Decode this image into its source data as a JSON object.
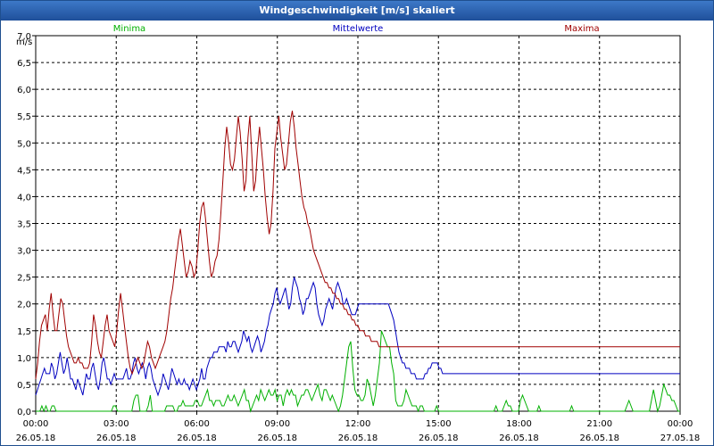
{
  "window": {
    "title": "Windgeschwindigkeit [m/s] skaliert"
  },
  "chart_data": {
    "type": "line",
    "title": "Windgeschwindigkeit [m/s] skaliert",
    "ylabel": "m/s",
    "ylim": [
      0,
      7.0
    ],
    "y_ticks": [
      "0,0",
      "0,5",
      "1,0",
      "1,5",
      "2,0",
      "2,5",
      "3,0",
      "3,5",
      "4,0",
      "4,5",
      "5,0",
      "5,5",
      "6,0",
      "6,5",
      "7,0"
    ],
    "x_ticks": [
      {
        "time": "00:00",
        "date": "26.05.18"
      },
      {
        "time": "03:00",
        "date": "26.05.18"
      },
      {
        "time": "06:00",
        "date": "26.05.18"
      },
      {
        "time": "09:00",
        "date": "26.05.18"
      },
      {
        "time": "12:00",
        "date": "26.05.18"
      },
      {
        "time": "15:00",
        "date": "26.05.18"
      },
      {
        "time": "18:00",
        "date": "26.05.18"
      },
      {
        "time": "21:00",
        "date": "26.05.18"
      },
      {
        "time": "00:00",
        "date": "27.05.18"
      }
    ],
    "x_range_hours": [
      0,
      24
    ],
    "grid": true,
    "legend_position": "top",
    "series": [
      {
        "name": "Minima",
        "color": "#00b000",
        "values": [
          0.0,
          0.0,
          0.0,
          0.1,
          0.0,
          0.1,
          0.0,
          0.0,
          0.1,
          0.1,
          0.0,
          0.0,
          0.0,
          0.0,
          0.0,
          0.0,
          0.0,
          0.0,
          0.0,
          0.0,
          0.0,
          0.0,
          0.0,
          0.0,
          0.0,
          0.0,
          0.0,
          0.0,
          0.0,
          0.0,
          0.0,
          0.0,
          0.0,
          0.0,
          0.0,
          0.0,
          0.0,
          0.0,
          0.1,
          0.1,
          0.0,
          0.0,
          0.0,
          0.0,
          0.0,
          0.0,
          0.0,
          0.0,
          0.2,
          0.3,
          0.3,
          0.0,
          0.0,
          0.0,
          0.0,
          0.1,
          0.3,
          0.0,
          0.0,
          0.0,
          0.0,
          0.0,
          0.0,
          0.0,
          0.1,
          0.1,
          0.1,
          0.1,
          0.0,
          0.0,
          0.1,
          0.1,
          0.2,
          0.1,
          0.1,
          0.1,
          0.1,
          0.1,
          0.2,
          0.2,
          0.1,
          0.1,
          0.2,
          0.3,
          0.4,
          0.2,
          0.2,
          0.1,
          0.2,
          0.2,
          0.2,
          0.1,
          0.1,
          0.2,
          0.3,
          0.2,
          0.2,
          0.3,
          0.2,
          0.1,
          0.2,
          0.3,
          0.4,
          0.2,
          0.2,
          0.0,
          0.1,
          0.2,
          0.3,
          0.2,
          0.4,
          0.3,
          0.2,
          0.3,
          0.4,
          0.3,
          0.3,
          0.4,
          0.2,
          0.3,
          0.3,
          0.1,
          0.3,
          0.4,
          0.3,
          0.4,
          0.3,
          0.3,
          0.1,
          0.2,
          0.3,
          0.3,
          0.4,
          0.4,
          0.3,
          0.2,
          0.3,
          0.4,
          0.5,
          0.3,
          0.2,
          0.4,
          0.4,
          0.3,
          0.2,
          0.3,
          0.2,
          0.1,
          0.0,
          0.1,
          0.3,
          0.6,
          0.9,
          1.2,
          1.3,
          0.8,
          0.4,
          0.3,
          0.3,
          0.2,
          0.2,
          0.3,
          0.6,
          0.5,
          0.3,
          0.1,
          0.3,
          0.6,
          0.9,
          1.5,
          1.4,
          1.3,
          1.2,
          1.2,
          0.9,
          0.7,
          0.2,
          0.1,
          0.1,
          0.1,
          0.2,
          0.4,
          0.3,
          0.2,
          0.1,
          0.1,
          0.1,
          0.0,
          0.1,
          0.1,
          0.0,
          0.0,
          0.0,
          0.0,
          0.0,
          0.0,
          0.1,
          0.0,
          0.0,
          0.0,
          0.0,
          0.0,
          0.0,
          0.0,
          0.0,
          0.0,
          0.0,
          0.0,
          0.0,
          0.0,
          0.0,
          0.0,
          0.0,
          0.0,
          0.0,
          0.0,
          0.0,
          0.0,
          0.0,
          0.0,
          0.0,
          0.0,
          0.0,
          0.0,
          0.0,
          0.1,
          0.0,
          0.0,
          0.0,
          0.1,
          0.2,
          0.1,
          0.1,
          0.0,
          0.0,
          0.0,
          0.0,
          0.2,
          0.3,
          0.2,
          0.1,
          0.0,
          0.0,
          0.0,
          0.0,
          0.0,
          0.1,
          0.0,
          0.0,
          0.0,
          0.0,
          0.0,
          0.0,
          0.0,
          0.0,
          0.0,
          0.0,
          0.0,
          0.0,
          0.0,
          0.0,
          0.0,
          0.1,
          0.0,
          0.0,
          0.0,
          0.0,
          0.0,
          0.0,
          0.0,
          0.0,
          0.0,
          0.0,
          0.0,
          0.0,
          0.0,
          0.0,
          0.0,
          0.0,
          0.0,
          0.0,
          0.0,
          0.0,
          0.0,
          0.0,
          0.0,
          0.0,
          0.0,
          0.0,
          0.1,
          0.2,
          0.1,
          0.0,
          0.0,
          0.0,
          0.0,
          0.0,
          0.0,
          0.0,
          0.0,
          0.0,
          0.2,
          0.4,
          0.2,
          0.0,
          0.1,
          0.3,
          0.5,
          0.4,
          0.3,
          0.3,
          0.2,
          0.2,
          0.1,
          0.0,
          0.0
        ]
      },
      {
        "name": "Mittelwerte",
        "color": "#0000c0",
        "values": [
          0.3,
          0.4,
          0.5,
          0.6,
          0.7,
          0.8,
          0.7,
          0.7,
          0.7,
          0.9,
          0.8,
          0.6,
          0.7,
          0.9,
          1.1,
          0.9,
          0.7,
          0.8,
          1.0,
          0.8,
          0.6,
          0.6,
          0.5,
          0.4,
          0.6,
          0.5,
          0.4,
          0.3,
          0.5,
          0.7,
          0.6,
          0.6,
          0.8,
          0.9,
          0.7,
          0.5,
          0.4,
          0.6,
          0.9,
          1.0,
          0.8,
          0.6,
          0.6,
          0.5,
          0.6,
          0.7,
          0.6,
          0.6,
          0.6,
          0.6,
          0.6,
          0.7,
          0.8,
          0.6,
          0.6,
          0.7,
          0.9,
          1.0,
          0.8,
          0.7,
          0.8,
          0.9,
          0.8,
          0.6,
          0.8,
          0.9,
          0.8,
          0.6,
          0.5,
          0.4,
          0.3,
          0.4,
          0.5,
          0.7,
          0.6,
          0.5,
          0.4,
          0.6,
          0.8,
          0.7,
          0.6,
          0.5,
          0.6,
          0.5,
          0.5,
          0.6,
          0.5,
          0.5,
          0.4,
          0.5,
          0.6,
          0.5,
          0.4,
          0.5,
          0.6,
          0.8,
          0.6,
          0.6,
          0.8,
          0.9,
          1.0,
          1.0,
          1.1,
          1.1,
          1.1,
          1.2,
          1.2,
          1.2,
          1.2,
          1.1,
          1.3,
          1.2,
          1.2,
          1.3,
          1.3,
          1.2,
          1.1,
          1.2,
          1.3,
          1.5,
          1.4,
          1.3,
          1.4,
          1.2,
          1.1,
          1.2,
          1.3,
          1.4,
          1.3,
          1.1,
          1.2,
          1.3,
          1.5,
          1.6,
          1.8,
          1.9,
          2.0,
          2.2,
          2.3,
          2.1,
          2.0,
          2.1,
          2.2,
          2.3,
          2.1,
          1.9,
          2.0,
          2.3,
          2.5,
          2.4,
          2.3,
          2.1,
          2.0,
          1.8,
          1.9,
          2.1,
          2.1,
          2.2,
          2.3,
          2.4,
          2.3,
          2.0,
          1.8,
          1.7,
          1.6,
          1.7,
          1.9,
          2.0,
          2.1,
          2.0,
          1.9,
          2.1,
          2.3,
          2.4,
          2.3,
          2.2,
          2.0,
          2.0,
          2.1,
          2.0,
          1.9,
          1.8,
          1.8,
          1.8,
          1.9,
          2.0,
          2.0,
          2.0,
          2.0,
          2.0,
          2.0,
          2.0,
          2.0,
          2.0,
          2.0,
          2.0,
          2.0,
          2.0,
          2.0,
          2.0,
          2.0,
          2.0,
          2.0,
          1.9,
          1.8,
          1.7,
          1.5,
          1.3,
          1.1,
          1.0,
          0.9,
          0.9,
          0.8,
          0.8,
          0.8,
          0.7,
          0.7,
          0.7,
          0.6,
          0.6,
          0.6,
          0.6,
          0.6,
          0.7,
          0.7,
          0.8,
          0.8,
          0.9,
          0.9,
          0.9,
          0.9,
          0.8,
          0.8,
          0.7,
          0.7,
          0.7,
          0.7,
          0.7,
          0.7,
          0.7,
          0.7,
          0.7,
          0.7,
          0.7,
          0.7,
          0.7,
          0.7,
          0.7,
          0.7,
          0.7,
          0.7,
          0.7,
          0.7,
          0.7,
          0.7,
          0.7,
          0.7,
          0.7,
          0.7,
          0.7,
          0.7,
          0.7,
          0.7,
          0.7,
          0.7,
          0.7,
          0.7,
          0.7,
          0.7,
          0.7,
          0.7,
          0.7,
          0.7,
          0.7,
          0.7,
          0.7,
          0.7,
          0.7,
          0.7,
          0.7,
          0.7,
          0.7,
          0.7,
          0.7,
          0.7,
          0.7,
          0.7,
          0.7,
          0.7,
          0.7,
          0.7,
          0.7,
          0.7,
          0.7,
          0.7,
          0.7,
          0.7,
          0.7,
          0.7,
          0.7,
          0.7,
          0.7,
          0.7,
          0.7,
          0.7,
          0.7,
          0.7,
          0.7,
          0.7,
          0.7,
          0.7,
          0.7,
          0.7,
          0.7,
          0.7,
          0.7,
          0.7,
          0.7,
          0.7,
          0.7,
          0.7,
          0.7,
          0.7,
          0.7,
          0.7,
          0.7,
          0.7,
          0.7,
          0.7,
          0.7,
          0.7,
          0.7,
          0.7,
          0.7,
          0.7,
          0.7,
          0.7,
          0.7,
          0.7,
          0.7,
          0.7,
          0.7,
          0.7,
          0.7,
          0.7,
          0.7,
          0.7,
          0.7,
          0.7,
          0.7,
          0.7,
          0.7,
          0.7,
          0.7,
          0.7,
          0.7,
          0.7,
          0.7,
          0.7,
          0.7,
          0.7,
          0.7,
          0.7,
          0.7,
          0.7,
          0.7,
          0.7,
          0.7,
          0.7,
          0.7
        ]
      },
      {
        "name": "Maxima",
        "color": "#a00000",
        "values": [
          0.6,
          0.9,
          1.3,
          1.6,
          1.7,
          1.8,
          1.5,
          1.9,
          2.2,
          1.8,
          1.5,
          1.5,
          1.8,
          2.1,
          2.0,
          1.7,
          1.4,
          1.2,
          1.1,
          1.0,
          0.9,
          0.9,
          1.0,
          0.9,
          0.9,
          0.8,
          0.8,
          0.8,
          0.9,
          1.3,
          1.8,
          1.6,
          1.3,
          1.1,
          1.0,
          1.3,
          1.6,
          1.8,
          1.5,
          1.4,
          1.3,
          1.2,
          1.5,
          1.9,
          2.2,
          1.9,
          1.6,
          1.3,
          1.0,
          0.8,
          0.7,
          0.8,
          0.9,
          1.0,
          0.9,
          0.8,
          0.9,
          1.1,
          1.3,
          1.2,
          1.0,
          0.9,
          0.8,
          0.9,
          1.0,
          1.1,
          1.2,
          1.3,
          1.5,
          1.8,
          2.1,
          2.3,
          2.6,
          2.9,
          3.2,
          3.4,
          3.1,
          2.8,
          2.5,
          2.6,
          2.8,
          2.7,
          2.5,
          2.6,
          3.0,
          3.5,
          3.8,
          3.9,
          3.6,
          3.2,
          2.8,
          2.5,
          2.6,
          2.8,
          2.9,
          3.2,
          3.7,
          4.3,
          4.9,
          5.3,
          5.0,
          4.6,
          4.5,
          4.7,
          5.1,
          5.5,
          5.2,
          4.7,
          4.1,
          4.3,
          5.1,
          5.5,
          4.8,
          4.1,
          4.3,
          4.9,
          5.3,
          4.9,
          4.5,
          4.0,
          3.6,
          3.3,
          3.5,
          4.1,
          4.9,
          5.2,
          5.5,
          5.1,
          4.8,
          4.5,
          4.6,
          5.0,
          5.4,
          5.6,
          5.3,
          4.9,
          4.6,
          4.3,
          4.0,
          3.8,
          3.7,
          3.5,
          3.4,
          3.2,
          3.0,
          2.9,
          2.8,
          2.7,
          2.6,
          2.5,
          2.4,
          2.4,
          2.3,
          2.3,
          2.2,
          2.2,
          2.1,
          2.1,
          2.0,
          2.0,
          1.9,
          1.9,
          1.8,
          1.8,
          1.7,
          1.7,
          1.6,
          1.6,
          1.5,
          1.5,
          1.5,
          1.4,
          1.4,
          1.4,
          1.3,
          1.3,
          1.3,
          1.3,
          1.2,
          1.2,
          1.2,
          1.2,
          1.2,
          1.2,
          1.2,
          1.2,
          1.2,
          1.2,
          1.2,
          1.2,
          1.2,
          1.2,
          1.2,
          1.2,
          1.2,
          1.2,
          1.2,
          1.2,
          1.2,
          1.2,
          1.2,
          1.2,
          1.2,
          1.2,
          1.2,
          1.2,
          1.2,
          1.2,
          1.2,
          1.2,
          1.2,
          1.2,
          1.2,
          1.2,
          1.2,
          1.2,
          1.2,
          1.2,
          1.2,
          1.2,
          1.2,
          1.2,
          1.2,
          1.2,
          1.2,
          1.2,
          1.2,
          1.2,
          1.2,
          1.2,
          1.2,
          1.2,
          1.2,
          1.2,
          1.2,
          1.2,
          1.2,
          1.2,
          1.2,
          1.2,
          1.2,
          1.2,
          1.2,
          1.2,
          1.2,
          1.2,
          1.2,
          1.2,
          1.2,
          1.2,
          1.2,
          1.2,
          1.2,
          1.2,
          1.2,
          1.2,
          1.2,
          1.2,
          1.2,
          1.2,
          1.2,
          1.2,
          1.2,
          1.2,
          1.2,
          1.2,
          1.2,
          1.2,
          1.2,
          1.2,
          1.2,
          1.2,
          1.2,
          1.2,
          1.2,
          1.2,
          1.2,
          1.2,
          1.2,
          1.2,
          1.2,
          1.2,
          1.2,
          1.2,
          1.2,
          1.2,
          1.2,
          1.2,
          1.2,
          1.2,
          1.2,
          1.2,
          1.2,
          1.2,
          1.2,
          1.2,
          1.2,
          1.2,
          1.2,
          1.2,
          1.2,
          1.2,
          1.2,
          1.2,
          1.2,
          1.2,
          1.2,
          1.2,
          1.2,
          1.2,
          1.2,
          1.2,
          1.2,
          1.2,
          1.2,
          1.2,
          1.2,
          1.2,
          1.2,
          1.2,
          1.2,
          1.2,
          1.2,
          1.2,
          1.2,
          1.2,
          1.2,
          1.2,
          1.2,
          1.2,
          1.2,
          1.2,
          1.2,
          1.2,
          1.2
        ]
      }
    ]
  }
}
